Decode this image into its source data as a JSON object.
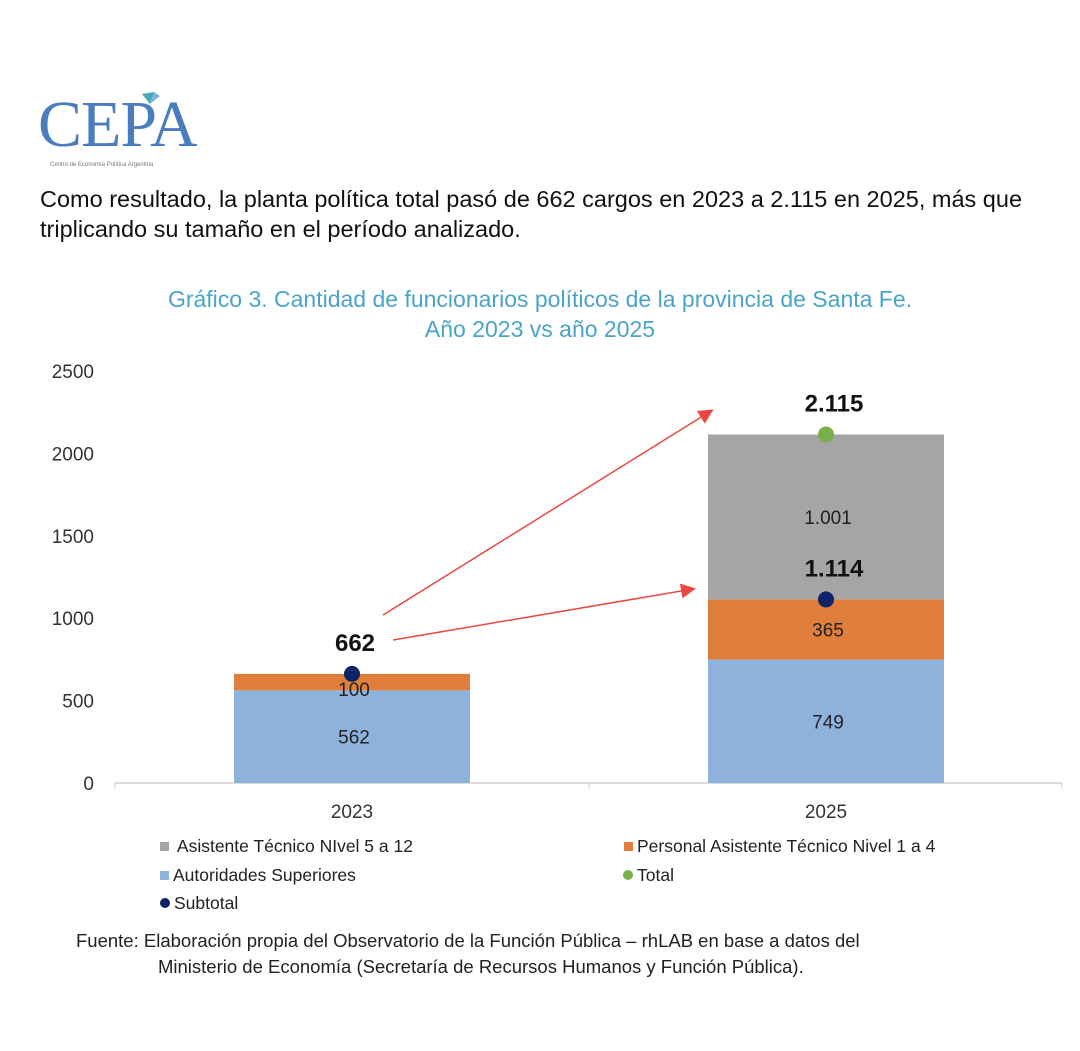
{
  "logo": {
    "name": "CEPA",
    "subtitle": "Centro de Economía Política Argentina"
  },
  "intro_text": "Como resultado, la planta política total pasó de 662 cargos en 2023 a 2.115 en 2025, más que triplicando su tamaño en el período analizado.",
  "source": {
    "line1": "Fuente: Elaboración propia del Observatorio de la Función Pública – rhLAB en base a datos del",
    "line2": "Ministerio de Economía (Secretaría de Recursos Humanos y Función Pública)."
  },
  "chart_data": {
    "type": "bar",
    "stacked": true,
    "title": "Gráfico 3. Cantidad de funcionarios políticos de la provincia de Santa Fe.",
    "subtitle": "Año 2023 vs año 2025",
    "categories": [
      "2023",
      "2025"
    ],
    "ylim": [
      0,
      2500
    ],
    "yticks": [
      0,
      500,
      1000,
      1500,
      2000,
      2500
    ],
    "grid": false,
    "legend_position": "bottom",
    "series": [
      {
        "name": "Autoridades Superiores",
        "values": [
          562,
          749
        ],
        "labels": [
          "562",
          "749"
        ],
        "color": "#8db3dc"
      },
      {
        "name": "Personal Asistente Técnico Nivel 1 a 4",
        "values": [
          100,
          365
        ],
        "labels": [
          "100",
          "365"
        ],
        "color": "#e07f3c"
      },
      {
        "name": "Asistente Técnico NIvel 5 a 12",
        "values": [
          0,
          1001
        ],
        "labels": [
          "",
          "1.001"
        ],
        "color": "#a5a5a5"
      }
    ],
    "points": [
      {
        "name": "Subtotal",
        "values": [
          662,
          1114
        ],
        "labels": [
          "662",
          "1.114"
        ],
        "color": "#0e2467"
      },
      {
        "name": "Total",
        "values": [
          null,
          2115
        ],
        "labels": [
          "",
          "2.115"
        ],
        "color": "#78b04a"
      }
    ],
    "legend": [
      {
        "name": "Asistente Técnico NIvel 5 a 12",
        "color": "#a5a5a5",
        "marker": "square"
      },
      {
        "name": "Personal Asistente Técnico Nivel 1 a 4",
        "color": "#e07f3c",
        "marker": "square"
      },
      {
        "name": "Autoridades Superiores",
        "color": "#8db3dc",
        "marker": "square"
      },
      {
        "name": "Total",
        "color": "#78b04a",
        "marker": "circle"
      },
      {
        "name": "Subtotal",
        "color": "#0e2467",
        "marker": "circle"
      }
    ],
    "annotations": [
      {
        "type": "arrow",
        "from": "2023 subtotal",
        "to": "2025 total",
        "color": "#e8483f"
      },
      {
        "type": "arrow",
        "from": "2023 subtotal",
        "to": "2025 subtotal",
        "color": "#e8483f"
      }
    ]
  }
}
